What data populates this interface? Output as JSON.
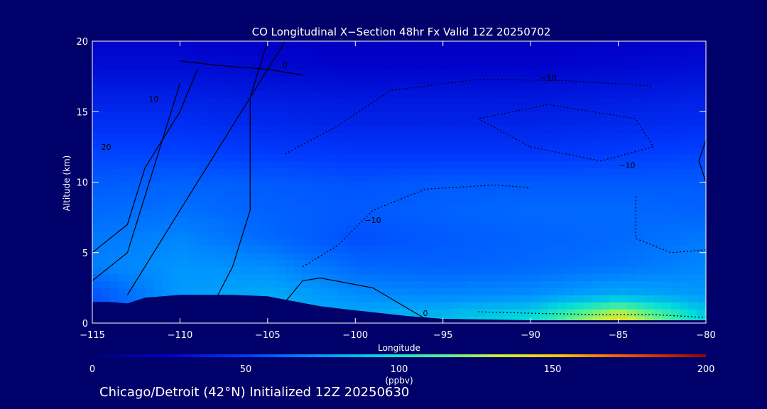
{
  "chart_data": {
    "type": "heatmap",
    "title": "CO Longitudinal X−Section 48hr  Fx Valid 12Z 20250702",
    "xlabel": "Longitude",
    "ylabel": "Altitude (km)",
    "xlim": [
      -115,
      -80
    ],
    "ylim": [
      0,
      20
    ],
    "x_ticks": [
      -115,
      -110,
      -105,
      -100,
      -95,
      -90,
      -85,
      -80
    ],
    "x_tick_labels": [
      "−115",
      "−110",
      "−105",
      "−100",
      "−95",
      "−90",
      "−85",
      "−80"
    ],
    "y_ticks": [
      0,
      5,
      10,
      15,
      20
    ],
    "y_tick_labels": [
      "0",
      "5",
      "10",
      "15",
      "20"
    ],
    "colorbar": {
      "label": "(ppbv)",
      "range": [
        0,
        200
      ],
      "ticks": [
        0,
        50,
        100,
        150,
        200
      ],
      "tick_labels": [
        "0",
        "50",
        "100",
        "150",
        "200"
      ]
    },
    "field": {
      "quantity": "CO mixing ratio (ppbv)",
      "x": [
        -115,
        -110,
        -105,
        -100,
        -95,
        -90,
        -85,
        -80
      ],
      "y": [
        0.5,
        2,
        4,
        6,
        8,
        10,
        12,
        14,
        16,
        18,
        20
      ],
      "z": [
        [
          55,
          78,
          82,
          80,
          85,
          95,
          140,
          90
        ],
        [
          55,
          75,
          80,
          72,
          70,
          72,
          80,
          75
        ],
        [
          68,
          74,
          72,
          62,
          60,
          62,
          65,
          70
        ],
        [
          66,
          70,
          62,
          55,
          58,
          60,
          62,
          66
        ],
        [
          62,
          64,
          60,
          58,
          60,
          62,
          62,
          60
        ],
        [
          58,
          60,
          58,
          56,
          58,
          58,
          58,
          58
        ],
        [
          52,
          52,
          50,
          48,
          48,
          48,
          50,
          52
        ],
        [
          45,
          45,
          42,
          40,
          40,
          40,
          42,
          44
        ],
        [
          38,
          38,
          36,
          34,
          34,
          34,
          36,
          38
        ],
        [
          30,
          30,
          28,
          26,
          26,
          26,
          28,
          30
        ],
        [
          25,
          25,
          23,
          22,
          22,
          22,
          23,
          25
        ]
      ]
    },
    "terrain_km": [
      [
        -115,
        1.5
      ],
      [
        -114,
        1.5
      ],
      [
        -113,
        1.4
      ],
      [
        -112,
        1.8
      ],
      [
        -110,
        2.0
      ],
      [
        -107,
        2.0
      ],
      [
        -105,
        1.9
      ],
      [
        -102,
        1.2
      ],
      [
        -100,
        0.9
      ],
      [
        -97,
        0.5
      ],
      [
        -95,
        0.3
      ],
      [
        -90,
        0.2
      ],
      [
        -85,
        0.2
      ],
      [
        -80,
        0.2
      ]
    ],
    "contour_labels": [
      "0",
      "10",
      "20",
      "−10"
    ],
    "footer": "Chicago/Detroit (42°N) Initialized 12Z 20250630"
  },
  "colors": {
    "background": "#00006b",
    "terrain": "#00006b",
    "text": "#ffffff",
    "contour": "#000000"
  }
}
